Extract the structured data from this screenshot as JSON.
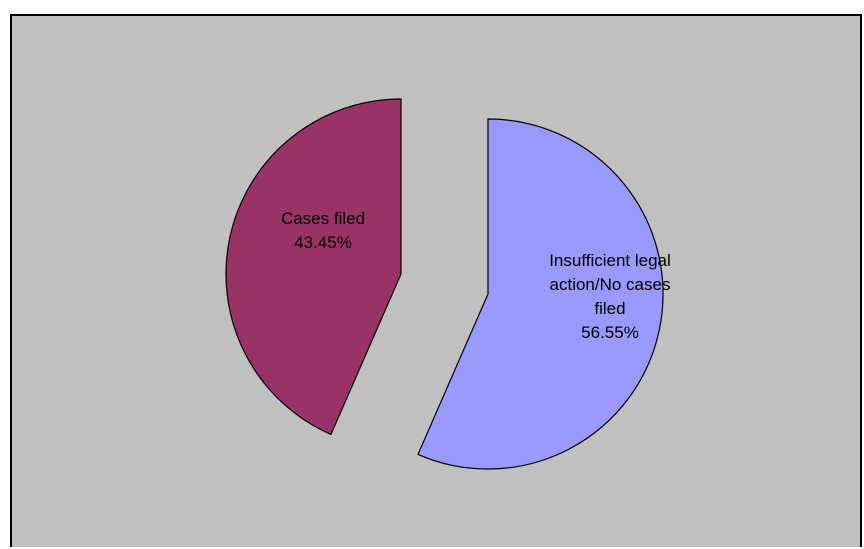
{
  "chart_data": {
    "type": "pie",
    "slices": [
      {
        "name": "Cases filed",
        "value": 43.45,
        "label": "43.45%",
        "color": "#993366"
      },
      {
        "name": "Insufficient legal action/No cases filed",
        "value": 56.55,
        "label": "56.55%",
        "color": "#9999ff"
      }
    ],
    "exploded": true,
    "legend": "none",
    "background": "#c0c0c0"
  }
}
